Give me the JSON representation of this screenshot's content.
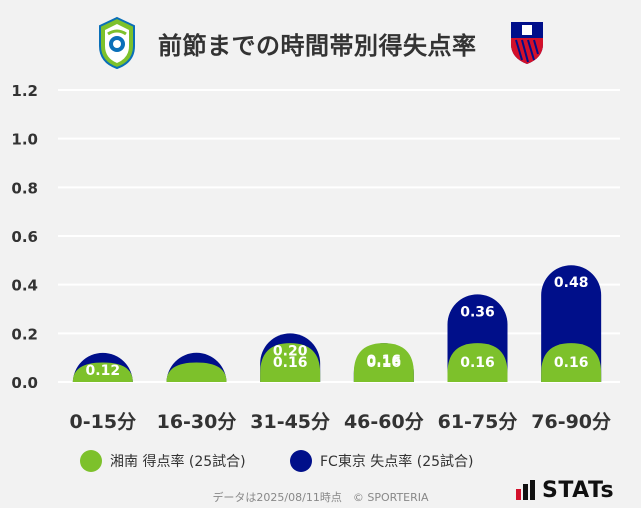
{
  "header": {
    "title": "前節までの時間帯別得失点率",
    "left_logo_name": "shonan-bellmare-logo",
    "right_logo_name": "fc-tokyo-logo"
  },
  "colors": {
    "scored": "#7dc12b",
    "conceded": "#000f8a",
    "background": "#f2f2f2",
    "gridline": "#ffffff"
  },
  "chart_data": {
    "type": "bar",
    "title": "前節までの時間帯別得失点率",
    "categories": [
      "0-15分",
      "16-30分",
      "31-45分",
      "46-60分",
      "61-75分",
      "76-90分"
    ],
    "series": [
      {
        "name": "湘南 得点率 (25試合)",
        "values": [
          0.08,
          0.08,
          0.16,
          0.16,
          0.16,
          0.16
        ],
        "labels": [
          "",
          "",
          "0.16",
          "0.16",
          "0.16",
          "0.16"
        ]
      },
      {
        "name": "FC東京 失点率 (25試合)",
        "values": [
          0.12,
          0.12,
          0.2,
          0.16,
          0.36,
          0.48
        ],
        "labels": [
          "0.12",
          "",
          "0.20",
          "0.16",
          "0.36",
          "0.48"
        ]
      }
    ],
    "ylim": [
      0,
      1.2
    ],
    "yticks": [
      "0.0",
      "0.2",
      "0.4",
      "0.6",
      "0.8",
      "1.0",
      "1.2"
    ],
    "xlabel": "",
    "ylabel": "",
    "legend_position": "bottom",
    "grid": true
  },
  "legend": {
    "scored_label": "湘南 得点率 (25試合)",
    "conceded_label": "FC東京 失点率 (25試合)"
  },
  "footer": {
    "note": "データは2025/08/11時点　© SPORTERIA",
    "brand": "STATs"
  }
}
